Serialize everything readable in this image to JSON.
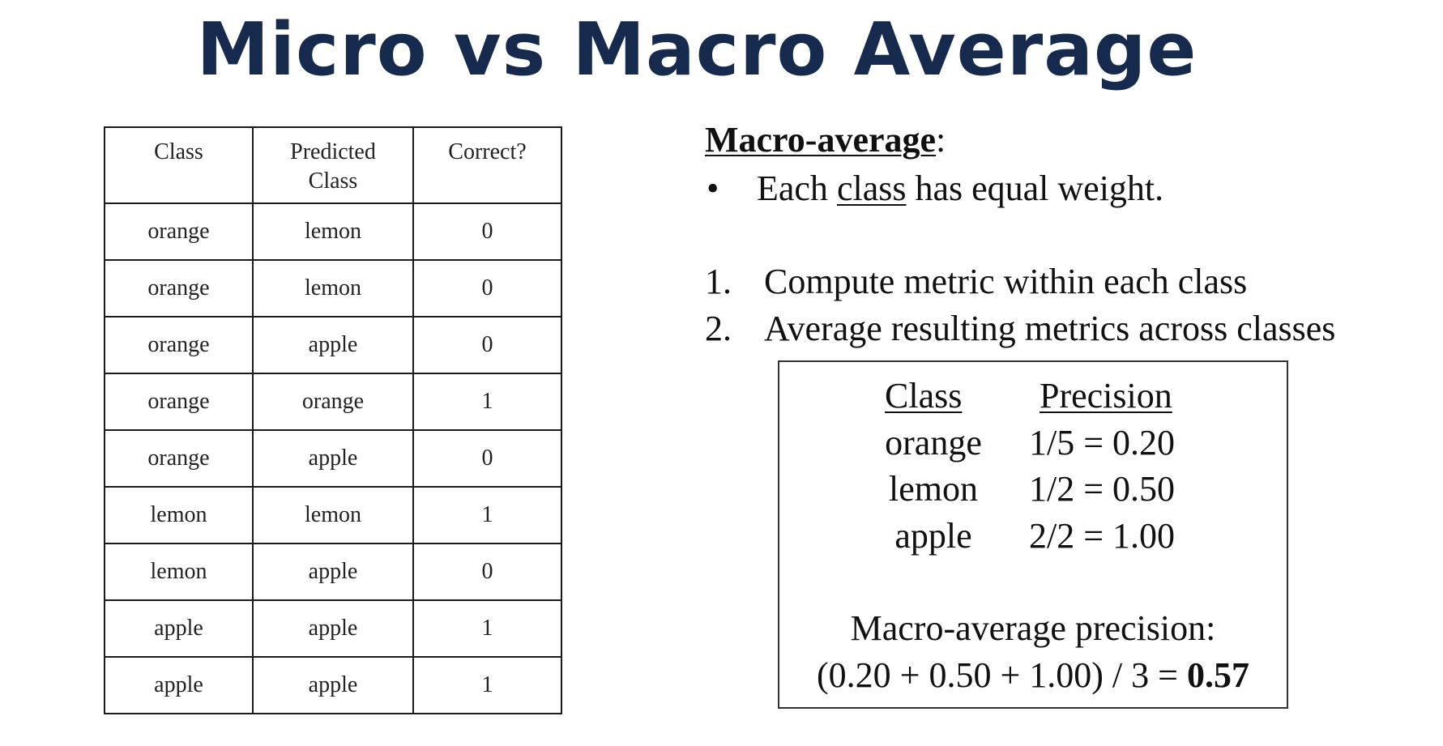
{
  "title": "Micro vs Macro Average",
  "table": {
    "headers": [
      "Class",
      "Predicted Class",
      "Correct?"
    ],
    "header_lines": [
      [
        "Class"
      ],
      [
        "Predicted",
        "Class"
      ],
      [
        "Correct?"
      ]
    ],
    "rows": [
      [
        "orange",
        "lemon",
        "0"
      ],
      [
        "orange",
        "lemon",
        "0"
      ],
      [
        "orange",
        "apple",
        "0"
      ],
      [
        "orange",
        "orange",
        "1"
      ],
      [
        "orange",
        "apple",
        "0"
      ],
      [
        "lemon",
        "lemon",
        "1"
      ],
      [
        "lemon",
        "apple",
        "0"
      ],
      [
        "apple",
        "apple",
        "1"
      ],
      [
        "apple",
        "apple",
        "1"
      ]
    ]
  },
  "macro": {
    "heading": "Macro-average",
    "heading_suffix": ":",
    "bullet_marker": "•",
    "bullet_prefix": "Each ",
    "bullet_underlined": "class",
    "bullet_suffix": " has equal weight.",
    "steps": [
      {
        "num": "1.",
        "text": "Compute metric within each class"
      },
      {
        "num": "2.",
        "text": "Average resulting metrics across classes"
      }
    ]
  },
  "precision_box": {
    "col_class": "Class",
    "col_precision": "Precision",
    "rows": [
      {
        "class": "orange",
        "precision": "1/5 = 0.20"
      },
      {
        "class": "lemon",
        "precision": "1/2 = 0.50"
      },
      {
        "class": "apple",
        "precision": "2/2 = 1.00"
      }
    ],
    "summary_label": "Macro-average precision:",
    "formula": "(0.20 + 0.50 + 1.00) / 3 = ",
    "result": "0.57"
  },
  "colors": {
    "title": "#152a4d",
    "text": "#111111",
    "border": "#1a1a1a"
  }
}
